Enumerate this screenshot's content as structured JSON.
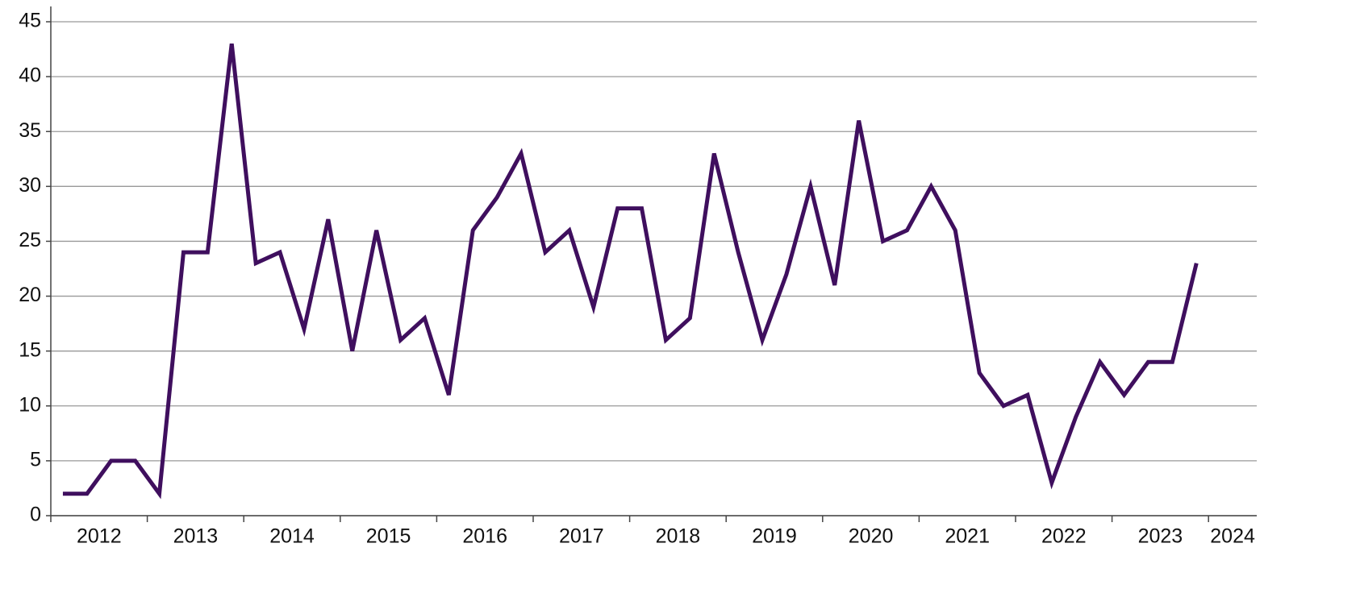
{
  "chart_data": {
    "type": "line",
    "x": [
      2012.125,
      2012.375,
      2012.625,
      2012.875,
      2013.125,
      2013.375,
      2013.625,
      2013.875,
      2014.125,
      2014.375,
      2014.625,
      2014.875,
      2015.125,
      2015.375,
      2015.625,
      2015.875,
      2016.125,
      2016.375,
      2016.625,
      2016.875,
      2017.125,
      2017.375,
      2017.625,
      2017.875,
      2018.125,
      2018.375,
      2018.625,
      2018.875,
      2019.125,
      2019.375,
      2019.625,
      2019.875,
      2020.125,
      2020.375,
      2020.625,
      2020.875,
      2021.125,
      2021.375,
      2021.625,
      2021.875,
      2022.125,
      2022.375,
      2022.625,
      2022.875,
      2023.125,
      2023.375,
      2023.625,
      2023.875
    ],
    "series": [
      {
        "color": "#3f0f5e",
        "values": [
          2,
          2,
          5,
          5,
          2,
          24,
          24,
          43,
          23,
          24,
          17,
          27,
          15,
          26,
          16,
          18,
          11,
          26,
          29,
          33,
          24,
          26,
          19,
          28,
          28,
          16,
          18,
          33,
          24,
          16,
          22,
          30,
          21,
          36,
          25,
          26,
          30,
          26,
          13,
          10,
          11,
          3,
          9,
          14,
          11,
          14,
          14,
          23
        ]
      }
    ],
    "xlim": [
      2012,
      2024.5
    ],
    "xticks": [
      2012,
      2013,
      2014,
      2015,
      2016,
      2017,
      2018,
      2019,
      2020,
      2021,
      2022,
      2023,
      2024
    ],
    "ylim": [
      0,
      45
    ],
    "yticks": [
      0,
      5,
      10,
      15,
      20,
      25,
      30,
      35,
      40,
      45
    ],
    "grid": true
  }
}
